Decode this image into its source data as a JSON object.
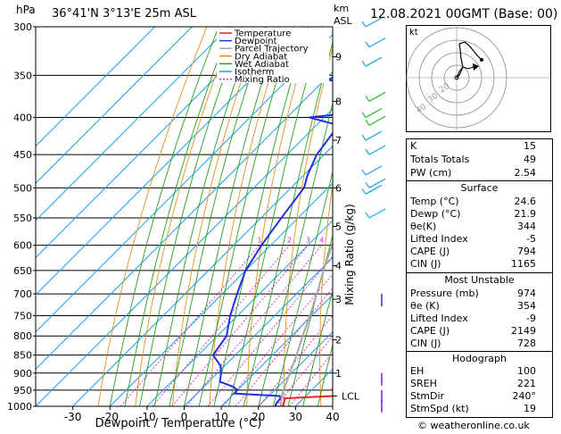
{
  "header": {
    "hpa_label": "hPa",
    "location": "36°41'N  3°13'E  25m  ASL",
    "km_label": "km",
    "asl_label": "ASL",
    "datetime": "12.08.2021  00GMT  (Base: 00)"
  },
  "chart_data": {
    "type": "line",
    "title": "",
    "xlabel": "Dewpoint / Temperature (°C)",
    "ylabel_right": "Mixing Ratio (g/kg)",
    "pressure_ticks": [
      300,
      350,
      400,
      450,
      500,
      550,
      600,
      650,
      700,
      750,
      800,
      850,
      900,
      950,
      1000
    ],
    "x_ticks": [
      -30,
      -20,
      -10,
      0,
      10,
      20,
      30,
      40
    ],
    "xlim": [
      -40,
      40
    ],
    "plim": [
      300,
      1000
    ],
    "km_ticks": [
      {
        "label": "9",
        "p": 330
      },
      {
        "label": "8",
        "p": 380
      },
      {
        "label": "7",
        "p": 430
      },
      {
        "label": "6",
        "p": 500
      },
      {
        "label": "5",
        "p": 565
      },
      {
        "label": "4",
        "p": 640
      },
      {
        "label": "3",
        "p": 712
      },
      {
        "label": "2",
        "p": 810
      },
      {
        "label": "1",
        "p": 900
      },
      {
        "label": "LCL",
        "p": 968
      }
    ],
    "mixing_ratio_labels": [
      "1",
      "2",
      "3",
      "4",
      "6",
      "8",
      "10",
      "15",
      "20",
      "25"
    ],
    "mixing_ratio_values": [
      1,
      2,
      3,
      4,
      6,
      8,
      10,
      15,
      20,
      25
    ],
    "legend": [
      "Temperature",
      "Dewpoint",
      "Parcel Trajectory",
      "Dry Adiabat",
      "Wet Adiabat",
      "Isotherm",
      "Mixing Ratio"
    ],
    "series": [
      {
        "name": "Temperature",
        "color": "#e8201f",
        "points": [
          [
            1000,
            26.5
          ],
          [
            990,
            26
          ],
          [
            975,
            25
          ],
          [
            968,
            37
          ],
          [
            960,
            37.5
          ],
          [
            950,
            35.5
          ],
          [
            940,
            35
          ],
          [
            925,
            34
          ],
          [
            900,
            33
          ],
          [
            850,
            29
          ],
          [
            800,
            24.5
          ],
          [
            750,
            20
          ],
          [
            700,
            15
          ],
          [
            650,
            10.5
          ],
          [
            600,
            5
          ],
          [
            550,
            -1
          ],
          [
            500,
            -6.5
          ],
          [
            480,
            -8.5
          ],
          [
            450,
            -11
          ],
          [
            430,
            -14
          ],
          [
            415,
            -15.5
          ],
          [
            400,
            -16
          ],
          [
            380,
            -18.5
          ],
          [
            350,
            -24.5
          ],
          [
            330,
            -29.5
          ],
          [
            300,
            -36
          ]
        ]
      },
      {
        "name": "Dewpoint",
        "color": "#2030e0",
        "points": [
          [
            1000,
            24.5
          ],
          [
            990,
            24
          ],
          [
            975,
            23.8
          ],
          [
            968,
            23
          ],
          [
            960,
            10
          ],
          [
            950,
            10
          ],
          [
            940,
            8
          ],
          [
            925,
            3
          ],
          [
            900,
            1
          ],
          [
            880,
            -1
          ],
          [
            850,
            -6
          ],
          [
            800,
            -7.5
          ],
          [
            750,
            -12
          ],
          [
            700,
            -16
          ],
          [
            650,
            -20
          ],
          [
            600,
            -22.5
          ],
          [
            550,
            -24.5
          ],
          [
            500,
            -26.5
          ],
          [
            480,
            -29
          ],
          [
            450,
            -32
          ],
          [
            430,
            -33
          ],
          [
            410,
            -34
          ],
          [
            400,
            -44
          ],
          [
            395,
            -35
          ],
          [
            380,
            -29
          ],
          [
            370,
            -27
          ],
          [
            355,
            -49
          ],
          [
            340,
            -46
          ],
          [
            335,
            -40
          ],
          [
            330,
            -34
          ],
          [
            325,
            -38
          ],
          [
            322,
            -34
          ],
          [
            320,
            -38
          ],
          [
            315,
            -34
          ],
          [
            310,
            -58
          ],
          [
            305,
            -52
          ],
          [
            300,
            -48
          ]
        ]
      },
      {
        "name": "Parcel Trajectory",
        "color": "#a8a8a8",
        "points": [
          [
            1000,
            26
          ],
          [
            968,
            23.5
          ],
          [
            925,
            21
          ],
          [
            900,
            19.5
          ],
          [
            850,
            16.5
          ],
          [
            800,
            13
          ],
          [
            750,
            9.5
          ],
          [
            700,
            5.5
          ],
          [
            650,
            1
          ],
          [
            600,
            -3.5
          ],
          [
            550,
            -8.5
          ],
          [
            500,
            -14
          ],
          [
            450,
            -20
          ],
          [
            400,
            -27
          ],
          [
            350,
            -35.5
          ],
          [
            300,
            -45
          ]
        ]
      }
    ]
  },
  "indices": [
    {
      "label": "K",
      "value": "15"
    },
    {
      "label": "Totals Totals",
      "value": "49"
    },
    {
      "label": "PW (cm)",
      "value": "2.54"
    }
  ],
  "surface": {
    "title": "Surface",
    "rows": [
      {
        "label": "Temp (°C)",
        "value": "24.6"
      },
      {
        "label": "Dewp (°C)",
        "value": "21.9"
      },
      {
        "label": "θe(K)",
        "value": "344"
      },
      {
        "label": "Lifted Index",
        "value": "-5"
      },
      {
        "label": "CAPE (J)",
        "value": "794"
      },
      {
        "label": "CIN (J)",
        "value": "1165"
      }
    ]
  },
  "most_unstable": {
    "title": "Most Unstable",
    "rows": [
      {
        "label": "Pressure (mb)",
        "value": "974"
      },
      {
        "label": "θe (K)",
        "value": "354"
      },
      {
        "label": "Lifted Index",
        "value": "-9"
      },
      {
        "label": "CAPE (J)",
        "value": "2149"
      },
      {
        "label": "CIN (J)",
        "value": "728"
      }
    ]
  },
  "hodograph_table": {
    "title": "Hodograph",
    "rows": [
      {
        "label": "EH",
        "value": "100"
      },
      {
        "label": "SREH",
        "value": "221"
      },
      {
        "label": "StmDir",
        "value": "240°"
      },
      {
        "label": "StmSpd (kt)",
        "value": "19"
      }
    ]
  },
  "hodograph": {
    "unit_label": "kt",
    "ring_labels": [
      "20",
      "30",
      "40"
    ]
  },
  "footer": {
    "credit": "© weatheronline.co.uk"
  }
}
